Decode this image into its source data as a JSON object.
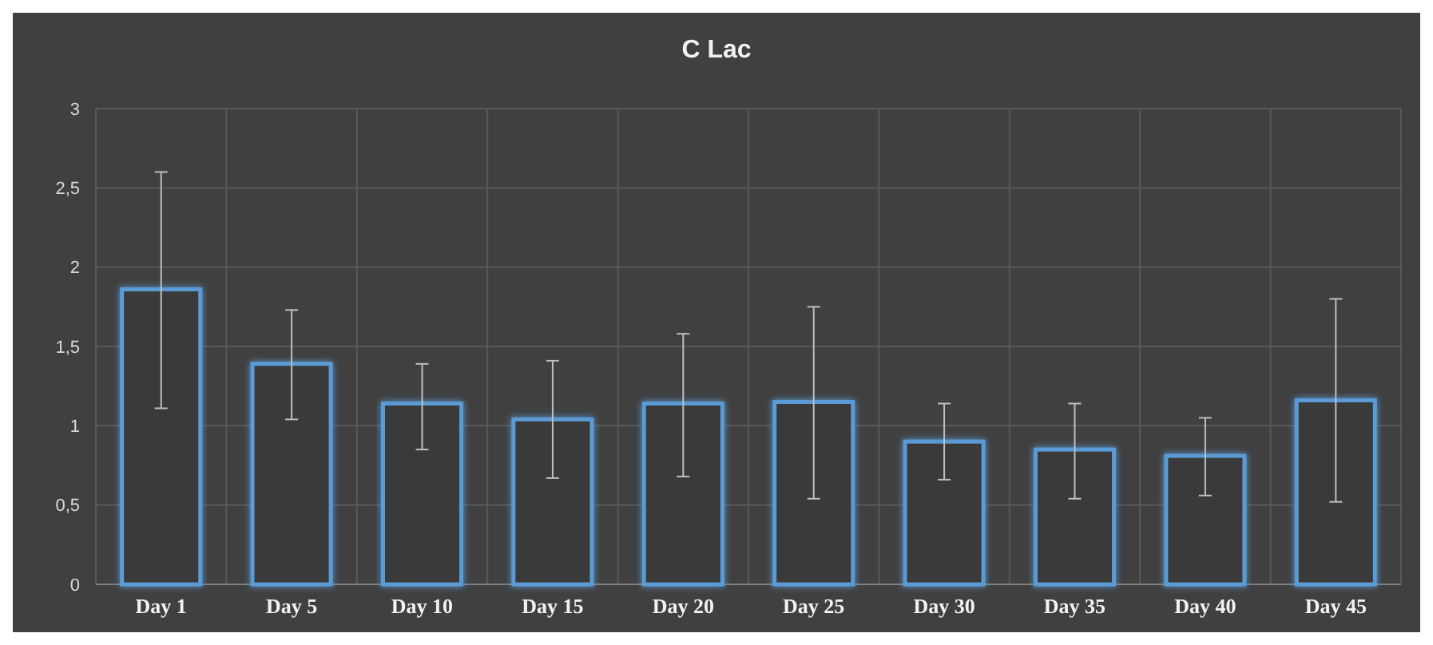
{
  "chart_data": {
    "type": "bar",
    "title": "C  Lac",
    "categories": [
      "Day 1",
      "Day 5",
      "Day 10",
      "Day 15",
      "Day 20",
      "Day 25",
      "Day 30",
      "Day 35",
      "Day 40",
      "Day 45"
    ],
    "series": [
      {
        "color": "#5b9bd5",
        "values": [
          1.86,
          1.39,
          1.14,
          1.04,
          1.14,
          1.15,
          0.9,
          0.85,
          0.81,
          1.16
        ],
        "errors": [
          [
            1.11,
            2.6
          ],
          [
            1.04,
            1.73
          ],
          [
            0.85,
            1.39
          ],
          [
            0.67,
            1.41
          ],
          [
            0.68,
            1.58
          ],
          [
            0.54,
            1.75
          ],
          [
            0.66,
            1.14
          ],
          [
            0.54,
            1.14
          ],
          [
            0.56,
            1.05
          ],
          [
            0.52,
            1.8
          ]
        ]
      }
    ],
    "ylim": [
      0,
      3
    ],
    "yticks": [
      0,
      {
        "value": 0.5,
        "label": "0,5"
      },
      1,
      {
        "value": 1.5,
        "label": "1,5"
      },
      2,
      {
        "value": 2.5,
        "label": "2,5"
      },
      3
    ],
    "grid": true
  }
}
